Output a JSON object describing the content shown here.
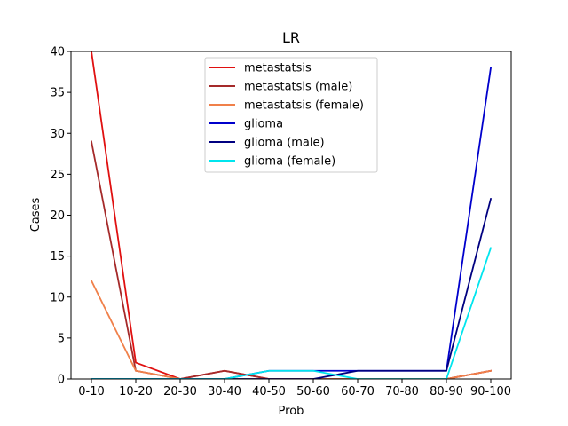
{
  "chart_data": {
    "type": "line",
    "title": "LR",
    "xlabel": "Prob",
    "ylabel": "Cases",
    "categories": [
      "0-10",
      "10-20",
      "20-30",
      "30-40",
      "40-50",
      "50-60",
      "60-70",
      "70-80",
      "80-90",
      "90-100"
    ],
    "ylim": [
      0,
      40
    ],
    "yticks": [
      0,
      5,
      10,
      15,
      20,
      25,
      30,
      35,
      40
    ],
    "grid": false,
    "legend_position": "top-center",
    "series": [
      {
        "name": "metastatsis",
        "color": "#e01010",
        "values": [
          40,
          2,
          0,
          1,
          0,
          0,
          0,
          0,
          0,
          1
        ]
      },
      {
        "name": "metastatsis (male)",
        "color": "#a52a2a",
        "values": [
          29,
          1,
          0,
          1,
          0,
          0,
          0,
          0,
          0,
          1
        ]
      },
      {
        "name": "metastatsis (female)",
        "color": "#f0804a",
        "values": [
          12,
          1,
          0,
          0,
          0,
          0,
          0,
          0,
          0,
          1
        ]
      },
      {
        "name": "glioma",
        "color": "#0000cc",
        "values": [
          0,
          0,
          0,
          0,
          1,
          1,
          1,
          1,
          1,
          38
        ]
      },
      {
        "name": "glioma (male)",
        "color": "#000080",
        "values": [
          0,
          0,
          0,
          0,
          0,
          0,
          1,
          1,
          1,
          22
        ]
      },
      {
        "name": "glioma (female)",
        "color": "#00e5ee",
        "values": [
          0,
          0,
          0,
          0,
          1,
          1,
          0,
          0,
          0,
          16
        ]
      }
    ]
  }
}
